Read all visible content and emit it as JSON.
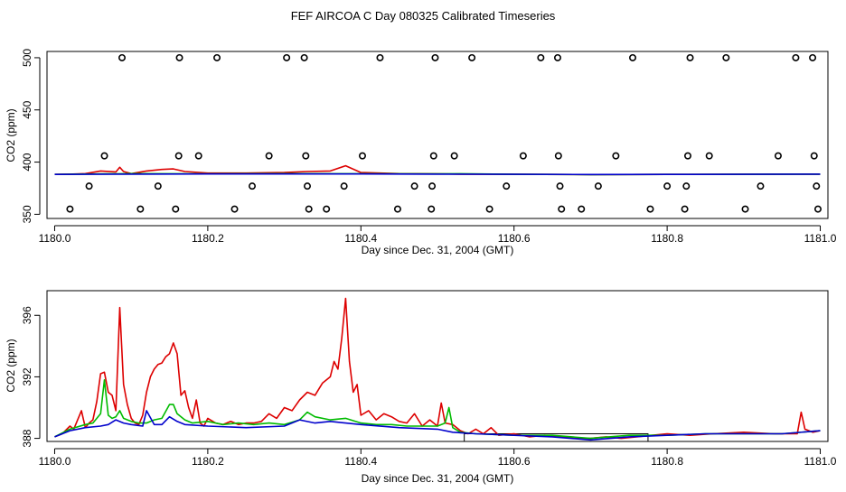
{
  "title": "FEF AIRCOA C  Day 080325  Calibrated Timeseries",
  "chart_data": [
    {
      "type": "scatter+line",
      "xlabel": "Day since Dec. 31, 2004 (GMT)",
      "ylabel": "CO2 (ppm)",
      "xlim": [
        1179.99,
        1181.01
      ],
      "ylim": [
        346,
        506
      ],
      "xticks": [
        1180.0,
        1180.2,
        1180.4,
        1180.6,
        1180.8,
        1181.0
      ],
      "xtick_labels": [
        "1180.0",
        "1180.2",
        "1180.4",
        "1180.6",
        "1180.8",
        "1181.0"
      ],
      "yticks": [
        350,
        400,
        450,
        500
      ],
      "ytick_labels": [
        "350",
        "400",
        "450",
        "500"
      ],
      "calibration_points": [
        [
          1180.02,
          355
        ],
        [
          1180.045,
          377
        ],
        [
          1180.065,
          406
        ],
        [
          1180.088,
          500
        ],
        [
          1180.112,
          355
        ],
        [
          1180.135,
          377
        ],
        [
          1180.158,
          355
        ],
        [
          1180.162,
          406
        ],
        [
          1180.163,
          500
        ],
        [
          1180.188,
          406
        ],
        [
          1180.212,
          500
        ],
        [
          1180.235,
          355
        ],
        [
          1180.258,
          377
        ],
        [
          1180.28,
          406
        ],
        [
          1180.303,
          500
        ],
        [
          1180.326,
          500
        ],
        [
          1180.328,
          406
        ],
        [
          1180.33,
          377
        ],
        [
          1180.332,
          355
        ],
        [
          1180.355,
          355
        ],
        [
          1180.378,
          377
        ],
        [
          1180.402,
          406
        ],
        [
          1180.425,
          500
        ],
        [
          1180.448,
          355
        ],
        [
          1180.47,
          377
        ],
        [
          1180.492,
          355
        ],
        [
          1180.493,
          377
        ],
        [
          1180.495,
          406
        ],
        [
          1180.497,
          500
        ],
        [
          1180.522,
          406
        ],
        [
          1180.545,
          500
        ],
        [
          1180.568,
          355
        ],
        [
          1180.59,
          377
        ],
        [
          1180.612,
          406
        ],
        [
          1180.635,
          500
        ],
        [
          1180.657,
          500
        ],
        [
          1180.658,
          406
        ],
        [
          1180.66,
          377
        ],
        [
          1180.662,
          355
        ],
        [
          1180.688,
          355
        ],
        [
          1180.71,
          377
        ],
        [
          1180.733,
          406
        ],
        [
          1180.755,
          500
        ],
        [
          1180.778,
          355
        ],
        [
          1180.8,
          377
        ],
        [
          1180.823,
          355
        ],
        [
          1180.825,
          377
        ],
        [
          1180.827,
          406
        ],
        [
          1180.83,
          500
        ],
        [
          1180.855,
          406
        ],
        [
          1180.877,
          500
        ],
        [
          1180.902,
          355
        ],
        [
          1180.922,
          377
        ],
        [
          1180.945,
          406
        ],
        [
          1180.968,
          500
        ],
        [
          1180.99,
          500
        ],
        [
          1180.992,
          406
        ],
        [
          1180.995,
          377
        ],
        [
          1180.997,
          355
        ]
      ],
      "series": [
        {
          "color": "#dd0000",
          "x": [
            1180.0,
            1180.02,
            1180.04,
            1180.06,
            1180.08,
            1180.085,
            1180.09,
            1180.1,
            1180.12,
            1180.14,
            1180.155,
            1180.17,
            1180.2,
            1180.25,
            1180.3,
            1180.33,
            1180.36,
            1180.38,
            1180.4,
            1180.45,
            1180.5,
            1180.53,
            1180.6,
            1180.7,
            1180.8,
            1180.9,
            1180.97,
            1181.0
          ],
          "y": [
            388.2,
            388.5,
            389.0,
            391.5,
            390.5,
            395,
            391,
            389,
            391.5,
            393,
            393.5,
            391,
            389.5,
            389.5,
            390,
            391,
            391.5,
            396.5,
            390,
            389,
            388.8,
            388.5,
            388.3,
            388.0,
            388.2,
            388.3,
            388.4,
            388.5
          ]
        },
        {
          "color": "#00bb00",
          "x": [
            1180.0,
            1180.1,
            1180.2,
            1180.3,
            1180.4,
            1180.5,
            1180.53,
            1180.6,
            1180.7,
            1180.8,
            1180.9,
            1181.0
          ],
          "y": [
            388.2,
            389,
            388.8,
            389,
            388.9,
            388.7,
            388.9,
            388.3,
            388.0,
            388.2,
            388.3,
            388.5
          ]
        },
        {
          "color": "#0000cc",
          "x": [
            1180.0,
            1180.1,
            1180.2,
            1180.3,
            1180.4,
            1180.5,
            1180.6,
            1180.7,
            1180.8,
            1180.9,
            1181.0
          ],
          "y": [
            388.2,
            388.5,
            388.6,
            388.6,
            388.6,
            388.5,
            388.3,
            388.1,
            388.2,
            388.3,
            388.5
          ]
        }
      ]
    },
    {
      "type": "line",
      "xlabel": "Day since Dec. 31, 2004 (GMT)",
      "ylabel": "CO2 (ppm)",
      "xlim": [
        1179.99,
        1181.01
      ],
      "ylim": [
        387.8,
        397.6
      ],
      "xticks": [
        1180.0,
        1180.2,
        1180.4,
        1180.6,
        1180.8,
        1181.0
      ],
      "xtick_labels": [
        "1180.0",
        "1180.2",
        "1180.4",
        "1180.6",
        "1180.8",
        "1181.0"
      ],
      "yticks": [
        388,
        392,
        396
      ],
      "ytick_labels": [
        "388",
        "392",
        "396"
      ],
      "highlight_box": {
        "x0": 1180.535,
        "x1": 1180.775,
        "y0": 387.8,
        "y1": 388.3
      },
      "series": [
        {
          "color": "#dd0000",
          "x": [
            1180.0,
            1180.01,
            1180.02,
            1180.025,
            1180.03,
            1180.035,
            1180.04,
            1180.045,
            1180.05,
            1180.055,
            1180.06,
            1180.065,
            1180.07,
            1180.075,
            1180.08,
            1180.085,
            1180.09,
            1180.095,
            1180.1,
            1180.105,
            1180.11,
            1180.115,
            1180.12,
            1180.125,
            1180.13,
            1180.135,
            1180.14,
            1180.145,
            1180.15,
            1180.155,
            1180.16,
            1180.165,
            1180.17,
            1180.175,
            1180.18,
            1180.185,
            1180.19,
            1180.195,
            1180.2,
            1180.21,
            1180.22,
            1180.23,
            1180.24,
            1180.25,
            1180.26,
            1180.27,
            1180.28,
            1180.29,
            1180.3,
            1180.31,
            1180.32,
            1180.33,
            1180.34,
            1180.35,
            1180.36,
            1180.365,
            1180.37,
            1180.375,
            1180.38,
            1180.385,
            1180.39,
            1180.395,
            1180.4,
            1180.41,
            1180.42,
            1180.43,
            1180.44,
            1180.45,
            1180.46,
            1180.47,
            1180.48,
            1180.49,
            1180.5,
            1180.505,
            1180.51,
            1180.52,
            1180.53,
            1180.54,
            1180.55,
            1180.56,
            1180.57,
            1180.58,
            1180.6,
            1180.62,
            1180.64,
            1180.66,
            1180.68,
            1180.7,
            1180.72,
            1180.74,
            1180.76,
            1180.78,
            1180.8,
            1180.83,
            1180.86,
            1180.9,
            1180.94,
            1180.97,
            1180.975,
            1180.98,
            1180.99,
            1181.0
          ],
          "y": [
            388.1,
            388.3,
            388.8,
            388.6,
            389.2,
            389.8,
            388.7,
            389.0,
            389.2,
            390.4,
            392.2,
            392.3,
            391.0,
            390.8,
            389.8,
            396.5,
            391.5,
            390.2,
            389.3,
            389.0,
            388.9,
            389.5,
            391.0,
            392.0,
            392.5,
            392.8,
            392.9,
            393.3,
            393.5,
            394.2,
            393.5,
            390.8,
            391.1,
            390.0,
            389.3,
            390.5,
            389.0,
            388.8,
            389.3,
            389.0,
            388.9,
            389.1,
            388.9,
            389.0,
            389.0,
            389.1,
            389.6,
            389.3,
            390.0,
            389.8,
            390.5,
            391.0,
            390.8,
            391.6,
            392.0,
            393.0,
            392.5,
            394.5,
            397.1,
            393.0,
            391.0,
            391.5,
            389.5,
            389.8,
            389.2,
            389.6,
            389.4,
            389.1,
            389.0,
            389.6,
            388.8,
            389.2,
            388.8,
            390.3,
            389.0,
            388.9,
            388.5,
            388.3,
            388.6,
            388.3,
            388.7,
            388.2,
            388.3,
            388.1,
            388.2,
            388.1,
            388.0,
            388.0,
            388.1,
            388.0,
            388.1,
            388.2,
            388.3,
            388.2,
            388.3,
            388.4,
            388.3,
            388.3,
            389.7,
            388.6,
            388.4,
            388.5
          ]
        },
        {
          "color": "#00bb00",
          "x": [
            1180.0,
            1180.02,
            1180.04,
            1180.05,
            1180.06,
            1180.065,
            1180.07,
            1180.075,
            1180.08,
            1180.085,
            1180.09,
            1180.1,
            1180.11,
            1180.12,
            1180.13,
            1180.14,
            1180.15,
            1180.155,
            1180.16,
            1180.17,
            1180.18,
            1180.2,
            1180.22,
            1180.24,
            1180.26,
            1180.28,
            1180.3,
            1180.32,
            1180.33,
            1180.34,
            1180.36,
            1180.38,
            1180.4,
            1180.42,
            1180.44,
            1180.46,
            1180.48,
            1180.5,
            1180.51,
            1180.515,
            1180.52,
            1180.53,
            1180.55,
            1180.6,
            1180.65,
            1180.7,
            1180.75,
            1180.8,
            1180.85,
            1180.9,
            1180.95,
            1181.0
          ],
          "y": [
            388.1,
            388.6,
            388.9,
            389.0,
            389.6,
            391.8,
            389.5,
            389.3,
            389.4,
            389.8,
            389.3,
            389.1,
            389.0,
            389.0,
            389.2,
            389.3,
            390.2,
            390.2,
            389.6,
            389.2,
            389.0,
            389.1,
            388.9,
            389.0,
            388.9,
            389.0,
            388.9,
            389.2,
            389.7,
            389.4,
            389.2,
            389.3,
            389.0,
            388.9,
            388.9,
            388.8,
            388.8,
            388.8,
            389.0,
            390.0,
            388.7,
            388.4,
            388.3,
            388.2,
            388.2,
            388.0,
            388.2,
            388.2,
            388.3,
            388.3,
            388.3,
            388.5
          ]
        },
        {
          "color": "#0000cc",
          "x": [
            1180.0,
            1180.02,
            1180.04,
            1180.06,
            1180.07,
            1180.08,
            1180.09,
            1180.1,
            1180.115,
            1180.12,
            1180.13,
            1180.14,
            1180.15,
            1180.16,
            1180.17,
            1180.2,
            1180.25,
            1180.3,
            1180.32,
            1180.34,
            1180.36,
            1180.4,
            1180.45,
            1180.5,
            1180.52,
            1180.55,
            1180.6,
            1180.65,
            1180.7,
            1180.75,
            1180.8,
            1180.85,
            1180.9,
            1180.95,
            1181.0
          ],
          "y": [
            388.1,
            388.5,
            388.7,
            388.8,
            388.9,
            389.2,
            389.0,
            388.9,
            388.8,
            389.8,
            388.9,
            388.9,
            389.4,
            389.1,
            388.9,
            388.8,
            388.7,
            388.8,
            389.2,
            389.0,
            389.1,
            388.9,
            388.7,
            388.6,
            388.4,
            388.3,
            388.2,
            388.1,
            387.9,
            388.1,
            388.2,
            388.3,
            388.3,
            388.3,
            388.5
          ]
        }
      ]
    }
  ]
}
